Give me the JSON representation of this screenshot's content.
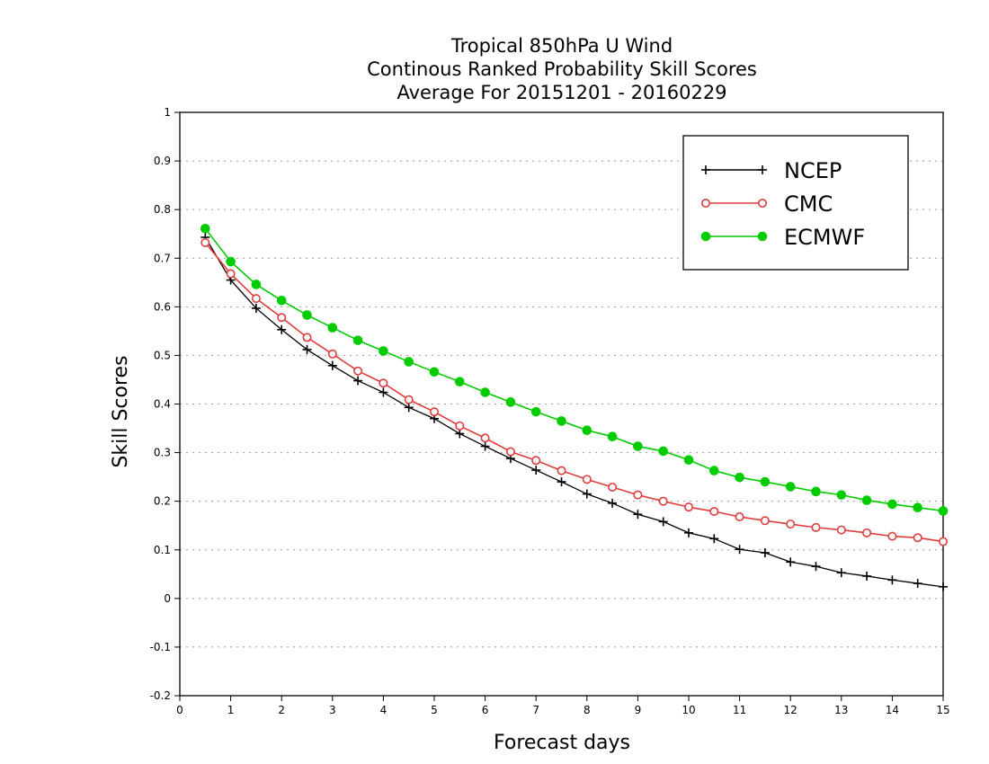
{
  "chart_data": {
    "type": "line",
    "title": [
      "Tropical 850hPa U Wind",
      "Continous Ranked Probability Skill Scores",
      "Average For 20151201 - 20160229"
    ],
    "xlabel": "Forecast days",
    "ylabel": "Skill Scores",
    "xlim": [
      0,
      15
    ],
    "ylim": [
      -0.2,
      1
    ],
    "xticks": [
      "0",
      "1",
      "2",
      "3",
      "4",
      "5",
      "6",
      "7",
      "8",
      "9",
      "10",
      "11",
      "12",
      "13",
      "14",
      "15"
    ],
    "yticks": [
      "1",
      "0.9",
      "0.8",
      "0.7",
      "0.6",
      "0.5",
      "0.4",
      "0.3",
      "0.2",
      "0.1",
      "0",
      "-0.1",
      "-0.2"
    ],
    "grid": "horizontal dotted",
    "legend_position": "top-right",
    "x": [
      0.5,
      1,
      1.5,
      2,
      2.5,
      3,
      3.5,
      4,
      4.5,
      5,
      5.5,
      6,
      6.5,
      7,
      7.5,
      8,
      8.5,
      9,
      9.5,
      10,
      10.5,
      11,
      11.5,
      12,
      12.5,
      13,
      13.5,
      14,
      14.5,
      15
    ],
    "series": [
      {
        "name": "NCEP",
        "color": "#000000",
        "marker": "plus",
        "values": [
          0.743,
          0.655,
          0.597,
          0.553,
          0.512,
          0.479,
          0.448,
          0.424,
          0.393,
          0.37,
          0.339,
          0.313,
          0.288,
          0.264,
          0.24,
          0.215,
          0.196,
          0.173,
          0.158,
          0.135,
          0.123,
          0.101,
          0.094,
          0.075,
          0.066,
          0.053,
          0.046,
          0.038,
          0.031,
          0.024
        ]
      },
      {
        "name": "CMC",
        "color": "#e03c3c",
        "marker": "open-circle",
        "values": [
          0.732,
          0.668,
          0.617,
          0.578,
          0.537,
          0.503,
          0.468,
          0.443,
          0.409,
          0.384,
          0.355,
          0.33,
          0.302,
          0.284,
          0.263,
          0.245,
          0.229,
          0.213,
          0.2,
          0.188,
          0.179,
          0.168,
          0.16,
          0.153,
          0.146,
          0.141,
          0.135,
          0.128,
          0.125,
          0.117
        ]
      },
      {
        "name": "ECMWF",
        "color": "#00cc00",
        "marker": "filled-circle",
        "values": [
          0.761,
          0.693,
          0.646,
          0.613,
          0.583,
          0.557,
          0.531,
          0.509,
          0.487,
          0.466,
          0.446,
          0.424,
          0.404,
          0.384,
          0.365,
          0.346,
          0.333,
          0.313,
          0.303,
          0.285,
          0.263,
          0.249,
          0.24,
          0.23,
          0.22,
          0.213,
          0.202,
          0.194,
          0.187,
          0.18
        ]
      }
    ]
  }
}
